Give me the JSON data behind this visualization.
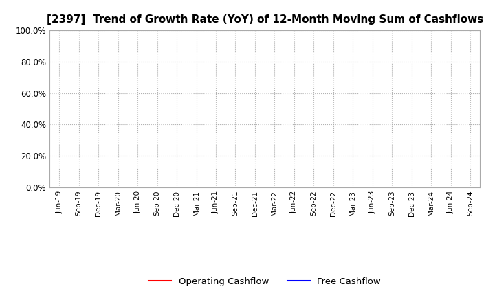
{
  "title": "[2397]  Trend of Growth Rate (YoY) of 12-Month Moving Sum of Cashflows",
  "title_fontsize": 11,
  "ylim": [
    0.0,
    1.0
  ],
  "yticks": [
    0.0,
    0.2,
    0.4,
    0.6,
    0.8,
    1.0
  ],
  "ytick_labels": [
    "0.0%",
    "20.0%",
    "40.0%",
    "60.0%",
    "80.0%",
    "100.0%"
  ],
  "x_labels": [
    "Jun-19",
    "Sep-19",
    "Dec-19",
    "Mar-20",
    "Jun-20",
    "Sep-20",
    "Dec-20",
    "Mar-21",
    "Jun-21",
    "Sep-21",
    "Dec-21",
    "Mar-22",
    "Jun-22",
    "Sep-22",
    "Dec-22",
    "Mar-23",
    "Jun-23",
    "Sep-23",
    "Dec-23",
    "Mar-24",
    "Jun-24",
    "Sep-24"
  ],
  "legend_entries": [
    "Operating Cashflow",
    "Free Cashflow"
  ],
  "legend_colors": [
    "red",
    "blue"
  ],
  "background_color": "#ffffff",
  "plot_bg_color": "#ffffff",
  "grid_color": "#aaaaaa",
  "line_width": 1.5
}
